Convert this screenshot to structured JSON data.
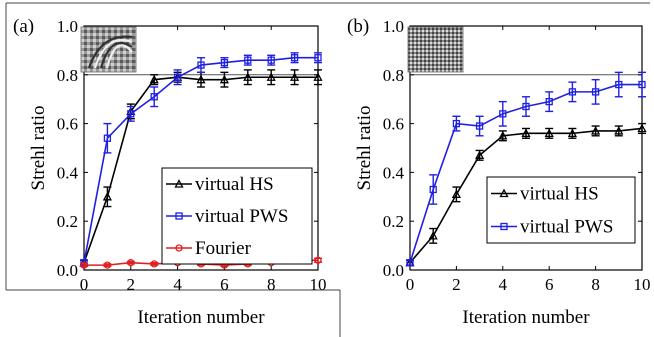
{
  "chart_data": [
    {
      "panel_label": "(a)",
      "type": "line",
      "xlabel": "Iteration number",
      "ylabel": "Strehl ratio",
      "xlim": [
        0,
        10
      ],
      "ylim": [
        0,
        1.0
      ],
      "xticks": [
        0,
        2,
        4,
        6,
        8,
        10
      ],
      "yticks": [
        0,
        0.2,
        0.4,
        0.6,
        0.8,
        1.0
      ],
      "ytick_labels": [
        "0.0",
        "0.2",
        "0.4",
        "0.6",
        "0.8",
        "1.0"
      ],
      "reference_line_y": 0.8,
      "legend_position": "center-right",
      "inset": "grayscale speckle phase image, top-left",
      "series": [
        {
          "name": "virtual HS",
          "color": "#000000",
          "x": [
            0,
            1,
            2,
            3,
            4,
            5,
            6,
            7,
            8,
            9,
            10
          ],
          "y": [
            0.03,
            0.3,
            0.65,
            0.78,
            0.79,
            0.78,
            0.78,
            0.79,
            0.79,
            0.79,
            0.79
          ],
          "err": [
            0.01,
            0.04,
            0.03,
            0.02,
            0.02,
            0.03,
            0.03,
            0.03,
            0.03,
            0.03,
            0.03
          ]
        },
        {
          "name": "virtual PWS",
          "color": "#2020e0",
          "x": [
            0,
            1,
            2,
            3,
            4,
            5,
            6,
            7,
            8,
            9,
            10
          ],
          "y": [
            0.03,
            0.54,
            0.64,
            0.71,
            0.79,
            0.84,
            0.85,
            0.86,
            0.86,
            0.87,
            0.87
          ],
          "err": [
            0.01,
            0.06,
            0.03,
            0.04,
            0.03,
            0.03,
            0.02,
            0.02,
            0.02,
            0.02,
            0.02
          ]
        },
        {
          "name": "Fourier",
          "color": "#e02020",
          "x": [
            0,
            1,
            2,
            3,
            4,
            5,
            6,
            7,
            8,
            9,
            10
          ],
          "y": [
            0.02,
            0.02,
            0.03,
            0.025,
            0.03,
            0.025,
            0.02,
            0.025,
            0.03,
            0.04,
            0.04
          ],
          "err": [
            0.005,
            0.005,
            0.005,
            0.005,
            0.005,
            0.005,
            0.005,
            0.005,
            0.005,
            0.008,
            0.008
          ]
        }
      ]
    },
    {
      "panel_label": "(b)",
      "type": "line",
      "xlabel": "Iteration number",
      "ylabel": "Strehl ratio",
      "xlim": [
        0,
        10
      ],
      "ylim": [
        0,
        1.0
      ],
      "xticks": [
        0,
        2,
        4,
        6,
        8,
        10
      ],
      "yticks": [
        0,
        0.2,
        0.4,
        0.6,
        0.8,
        1.0
      ],
      "ytick_labels": [
        "0.0",
        "0.2",
        "0.4",
        "0.6",
        "0.8",
        "1.0"
      ],
      "reference_line_y": 0.8,
      "legend_position": "lower-right",
      "inset": "grayscale speckle phase image, top-left",
      "series": [
        {
          "name": "virtual HS",
          "color": "#000000",
          "x": [
            0,
            1,
            2,
            3,
            4,
            5,
            6,
            7,
            8,
            9,
            10
          ],
          "y": [
            0.03,
            0.14,
            0.31,
            0.47,
            0.55,
            0.56,
            0.56,
            0.56,
            0.57,
            0.57,
            0.58
          ],
          "err": [
            0.01,
            0.03,
            0.03,
            0.02,
            0.02,
            0.02,
            0.02,
            0.02,
            0.02,
            0.02,
            0.02
          ]
        },
        {
          "name": "virtual PWS",
          "color": "#2020e0",
          "x": [
            0,
            1,
            2,
            3,
            4,
            5,
            6,
            7,
            8,
            9,
            10
          ],
          "y": [
            0.03,
            0.33,
            0.6,
            0.59,
            0.64,
            0.67,
            0.69,
            0.73,
            0.73,
            0.76,
            0.76
          ],
          "err": [
            0.01,
            0.06,
            0.03,
            0.04,
            0.05,
            0.04,
            0.04,
            0.04,
            0.05,
            0.05,
            0.05
          ]
        }
      ]
    }
  ]
}
